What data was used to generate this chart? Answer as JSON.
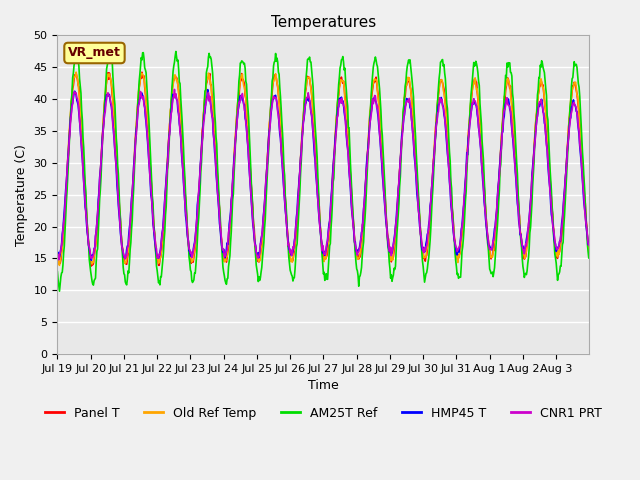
{
  "title": "Temperatures",
  "xlabel": "Time",
  "ylabel": "Temperature (C)",
  "ylim": [
    0,
    50
  ],
  "yticks": [
    0,
    5,
    10,
    15,
    20,
    25,
    30,
    35,
    40,
    45,
    50
  ],
  "fig_bg_color": "#f0f0f0",
  "plot_bg_color": "#e8e8e8",
  "series": [
    {
      "label": "Panel T",
      "color": "#ff0000",
      "lw": 1.2
    },
    {
      "label": "Old Ref Temp",
      "color": "#ffa500",
      "lw": 1.2
    },
    {
      "label": "AM25T Ref",
      "color": "#00dd00",
      "lw": 1.2
    },
    {
      "label": "HMP45 T",
      "color": "#0000ff",
      "lw": 1.2
    },
    {
      "label": "CNR1 PRT",
      "color": "#cc00cc",
      "lw": 1.2
    }
  ],
  "annotation_text": "VR_met",
  "annotation_bg": "#ffff99",
  "annotation_border": "#996600",
  "x_tick_labels": [
    "Jul 19",
    "Jul 20",
    "Jul 21",
    "Jul 22",
    "Jul 23",
    "Jul 24",
    "Jul 25",
    "Jul 26",
    "Jul 27",
    "Jul 28",
    "Jul 29",
    "Jul 30",
    "Jul 31",
    "Aug 1",
    "Aug 2",
    "Aug 3"
  ],
  "n_days": 16,
  "pts_per_day": 48,
  "title_fontsize": 11,
  "label_fontsize": 9,
  "tick_fontsize": 8,
  "legend_fontsize": 9
}
